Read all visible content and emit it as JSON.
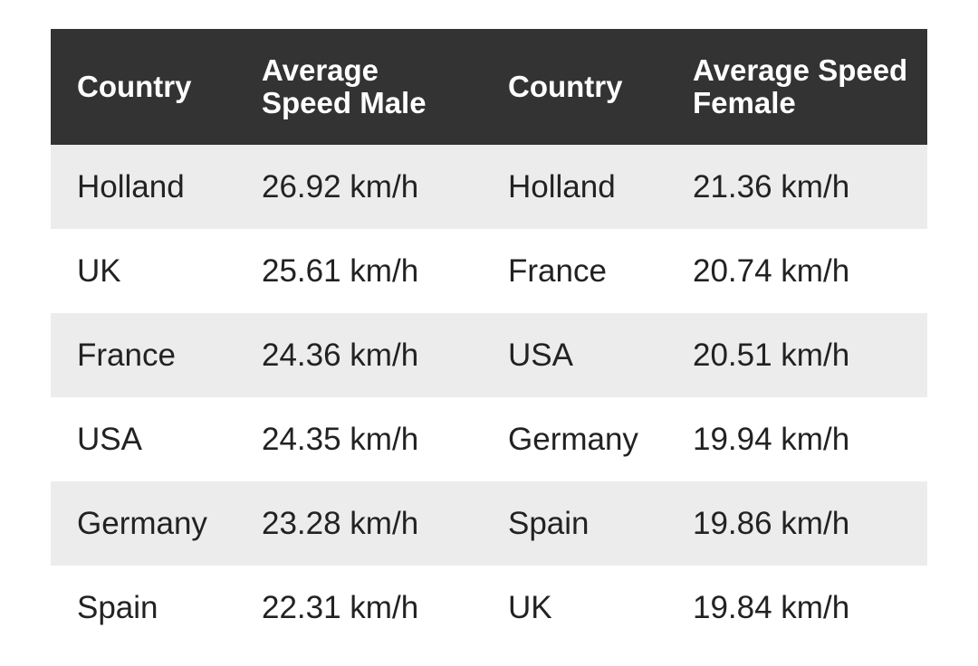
{
  "table": {
    "header": [
      "Country",
      "Average Speed Male",
      "Country",
      "Average Speed Female"
    ],
    "rows": [
      [
        "Holland",
        "26.92 km/h",
        "Holland",
        "21.36 km/h"
      ],
      [
        "UK",
        "25.61 km/h",
        "France",
        "20.74 km/h"
      ],
      [
        "France",
        "24.36 km/h",
        "USA",
        "20.51 km/h"
      ],
      [
        "USA",
        "24.35 km/h",
        "Germany",
        "19.94 km/h"
      ],
      [
        "Germany",
        "23.28 km/h",
        "Spain",
        "19.86 km/h"
      ],
      [
        "Spain",
        "22.31 km/h",
        "UK",
        "19.84 km/h"
      ]
    ]
  }
}
